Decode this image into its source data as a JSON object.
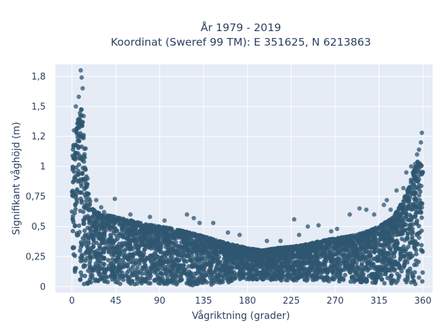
{
  "chart_data": {
    "type": "scatter",
    "title": "År 1979 - 2019",
    "subtitle": "Koordinat (Sweref 99 TM): E 351625, N 6213863",
    "xlabel": "Vågriktning (grader)",
    "ylabel": "Signifikant våghöjd (m)",
    "xlim": [
      -17,
      370
    ],
    "ylim": [
      -0.05,
      1.85
    ],
    "x_ticks": [
      0,
      45,
      90,
      135,
      180,
      225,
      270,
      315,
      360
    ],
    "x_tick_labels": [
      "0",
      "45",
      "90",
      "135",
      "180",
      "225",
      "270",
      "315",
      "360"
    ],
    "y_ticks": [
      0,
      0.25,
      0.5,
      0.75,
      1,
      1.25,
      1.5,
      1.75
    ],
    "y_tick_labels": [
      "0",
      "0,25",
      "0,5",
      "0,75",
      "1",
      "1,2",
      "1,5",
      "1,8"
    ],
    "grid": true,
    "marker_color": "#2f5670",
    "background_color": "#e5ecf6",
    "envelope": {
      "x": [
        0,
        5,
        10,
        15,
        20,
        30,
        45,
        60,
        75,
        90,
        105,
        120,
        135,
        150,
        165,
        180,
        195,
        210,
        225,
        240,
        255,
        270,
        285,
        300,
        315,
        330,
        340,
        345,
        350,
        355,
        360
      ],
      "y_upper": [
        1.1,
        1.35,
        1.5,
        0.9,
        0.65,
        0.6,
        0.58,
        0.55,
        0.52,
        0.5,
        0.48,
        0.45,
        0.42,
        0.38,
        0.35,
        0.32,
        0.3,
        0.32,
        0.33,
        0.35,
        0.38,
        0.4,
        0.42,
        0.45,
        0.5,
        0.58,
        0.72,
        0.82,
        0.95,
        1.05,
        1.0
      ],
      "y_lower": [
        0.02,
        0.02,
        0.02,
        0.02,
        0.02,
        0.02,
        0.02,
        0.02,
        0.02,
        0.02,
        0.02,
        0.01,
        0.01,
        0.02,
        0.04,
        0.06,
        0.06,
        0.05,
        0.05,
        0.05,
        0.05,
        0.04,
        0.04,
        0.03,
        0.03,
        0.02,
        0.02,
        0.02,
        0.02,
        0.02,
        0.02
      ]
    },
    "outliers": [
      {
        "x": 9,
        "y": 1.8
      },
      {
        "x": 10,
        "y": 1.74
      },
      {
        "x": 11,
        "y": 1.65
      },
      {
        "x": 7,
        "y": 1.58
      },
      {
        "x": 4,
        "y": 1.5
      },
      {
        "x": 12,
        "y": 1.42
      },
      {
        "x": 2,
        "y": 1.3
      },
      {
        "x": 14,
        "y": 1.15
      },
      {
        "x": 16,
        "y": 0.9
      },
      {
        "x": 25,
        "y": 0.72
      },
      {
        "x": 44,
        "y": 0.73
      },
      {
        "x": 30,
        "y": 0.66
      },
      {
        "x": 33,
        "y": 0.62
      },
      {
        "x": 60,
        "y": 0.6
      },
      {
        "x": 80,
        "y": 0.58
      },
      {
        "x": 95,
        "y": 0.55
      },
      {
        "x": 118,
        "y": 0.6
      },
      {
        "x": 125,
        "y": 0.57
      },
      {
        "x": 131,
        "y": 0.53
      },
      {
        "x": 145,
        "y": 0.53
      },
      {
        "x": 160,
        "y": 0.45
      },
      {
        "x": 172,
        "y": 0.43
      },
      {
        "x": 200,
        "y": 0.38
      },
      {
        "x": 214,
        "y": 0.38
      },
      {
        "x": 228,
        "y": 0.56
      },
      {
        "x": 233,
        "y": 0.43
      },
      {
        "x": 242,
        "y": 0.5
      },
      {
        "x": 253,
        "y": 0.51
      },
      {
        "x": 266,
        "y": 0.46
      },
      {
        "x": 272,
        "y": 0.48
      },
      {
        "x": 285,
        "y": 0.6
      },
      {
        "x": 295,
        "y": 0.65
      },
      {
        "x": 302,
        "y": 0.64
      },
      {
        "x": 310,
        "y": 0.6
      },
      {
        "x": 320,
        "y": 0.68
      },
      {
        "x": 323,
        "y": 0.72
      },
      {
        "x": 327,
        "y": 0.64
      },
      {
        "x": 333,
        "y": 0.8
      },
      {
        "x": 340,
        "y": 0.82
      },
      {
        "x": 343,
        "y": 0.95
      },
      {
        "x": 348,
        "y": 1.0
      },
      {
        "x": 352,
        "y": 1.02
      },
      {
        "x": 354,
        "y": 1.1
      },
      {
        "x": 356,
        "y": 1.14
      },
      {
        "x": 358,
        "y": 1.2
      },
      {
        "x": 359,
        "y": 1.28
      }
    ]
  }
}
